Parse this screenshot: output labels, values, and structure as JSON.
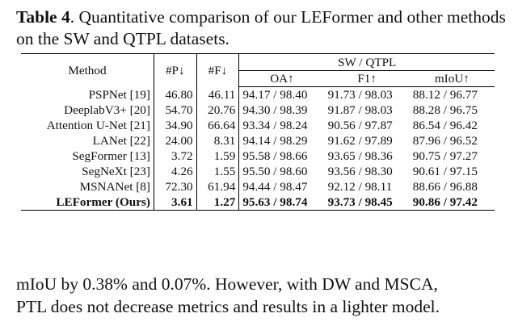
{
  "caption": {
    "label": "Table 4",
    "text": ". Quantitative comparison of our LEFormer and other methods on the SW and QTPL datasets."
  },
  "table": {
    "headers": {
      "method": "Method",
      "params": "#P↓",
      "flops": "#F↓",
      "group": "SW / QTPL",
      "oa": "OA↑",
      "f1": "F1↑",
      "miou": "mIoU↑"
    },
    "rows": [
      {
        "method": "PSPNet [19]",
        "p": "46.80",
        "f": "46.11",
        "oa": "94.17 / 98.40",
        "f1": "91.73 / 98.03",
        "miou": "88.12 / 96.77"
      },
      {
        "method": "DeeplabV3+ [20]",
        "p": "54.70",
        "f": "20.76",
        "oa": "94.30 / 98.39",
        "f1": "91.87 / 98.03",
        "miou": "88.28 / 96.75"
      },
      {
        "method": "Attention U-Net [21]",
        "p": "34.90",
        "f": "66.64",
        "oa": "93.34 / 98.24",
        "f1": "90.56 / 97.87",
        "miou": "86.54 / 96.42"
      },
      {
        "method": "LANet [22]",
        "p": "24.00",
        "f": "8.31",
        "oa": "94.14 / 98.29",
        "f1": "91.62 / 97.89",
        "miou": "87.96 / 96.52"
      },
      {
        "method": "SegFormer [13]",
        "p": "3.72",
        "f": "1.59",
        "oa": "95.58 / 98.66",
        "f1": "93.65 / 98.36",
        "miou": "90.75 / 97.27"
      },
      {
        "method": "SegNeXt [23]",
        "p": "4.26",
        "f": "1.55",
        "oa": "95.50 / 98.60",
        "f1": "93.56 / 98.30",
        "miou": "90.61 / 97.15"
      },
      {
        "method": "MSNANet [8]",
        "p": "72.30",
        "f": "61.94",
        "oa": "94.44 / 98.47",
        "f1": "92.12 / 98.11",
        "miou": "88.66 / 96.88"
      },
      {
        "method": "LEFormer (Ours)",
        "p": "3.61",
        "f": "1.27",
        "oa": "95.63 / 98.74",
        "f1": "93.73 / 98.45",
        "miou": "90.86 / 97.42"
      }
    ]
  },
  "body": {
    "line1": "mIoU by 0.38% and 0.07%. However, with DW and MSCA,",
    "line2": "PTL does not decrease metrics and results in a lighter model."
  }
}
